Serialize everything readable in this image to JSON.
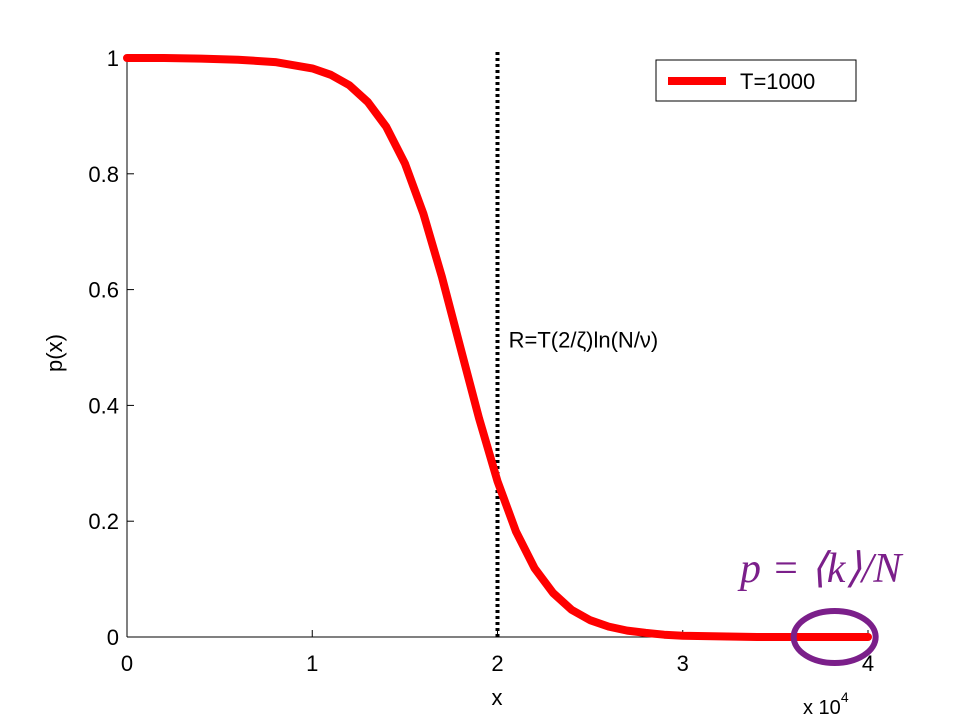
{
  "chart_data": {
    "type": "line",
    "xlabel": "x",
    "ylabel": "p(x)",
    "xlim": [
      0,
      40000
    ],
    "ylim": [
      0,
      1
    ],
    "x_ticks": [
      0,
      10000,
      20000,
      30000,
      40000
    ],
    "x_tick_labels": [
      "0",
      "1",
      "2",
      "3",
      "4"
    ],
    "x_exponent_label": {
      "base": "x 10",
      "exp": "4"
    },
    "y_ticks": [
      0,
      0.2,
      0.4,
      0.6,
      0.8,
      1
    ],
    "y_tick_labels": [
      "0",
      "0.2",
      "0.4",
      "0.6",
      "0.8",
      "1"
    ],
    "grid": false,
    "legend_position": "top-right",
    "series": [
      {
        "name": "T=1000",
        "color": "#ff0000",
        "x": [
          0,
          2000,
          4000,
          6000,
          8000,
          10000,
          11000,
          12000,
          13000,
          14000,
          15000,
          16000,
          17000,
          18000,
          19000,
          20000,
          21000,
          22000,
          23000,
          24000,
          25000,
          26000,
          27000,
          28000,
          29000,
          30000,
          32000,
          34000,
          36000,
          38000,
          40000
        ],
        "y": [
          1.0,
          1.0,
          0.999,
          0.997,
          0.993,
          0.982,
          0.971,
          0.953,
          0.924,
          0.881,
          0.818,
          0.731,
          0.622,
          0.5,
          0.378,
          0.269,
          0.182,
          0.119,
          0.076,
          0.047,
          0.029,
          0.018,
          0.011,
          0.007,
          0.004,
          0.002,
          0.001,
          0.0,
          0.0,
          0.0,
          0.0
        ]
      }
    ],
    "vertical_line": {
      "x": 20000,
      "style": "dotted",
      "color": "#000000"
    },
    "annotations": [
      {
        "text": "R=T(2/ζ)ln(N/ν)",
        "x": 20600,
        "y": 0.49
      }
    ],
    "formula": {
      "text": "p = ⟨k⟩/N",
      "color": "#7b1f8a"
    },
    "highlight_ellipse": {
      "cx": 38200,
      "cy": 0.0,
      "color": "#7b1f8a"
    }
  }
}
